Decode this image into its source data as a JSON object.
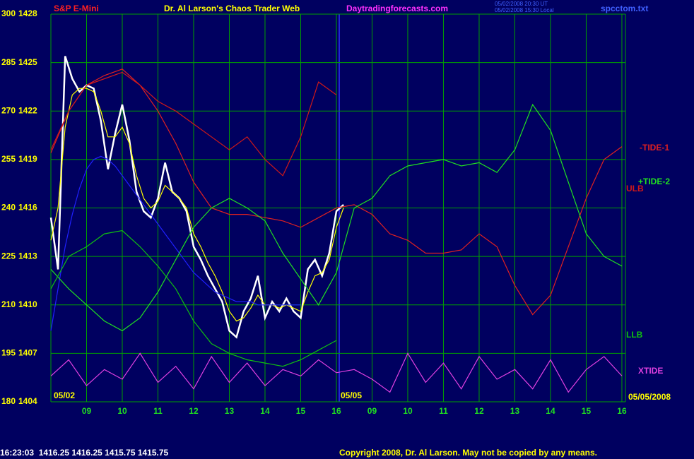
{
  "chart_data": {
    "type": "line",
    "instrument": "S&P E-Mini",
    "title": "Dr. Al Larson's Chaos Trader Web",
    "website": "Daytradingforecasts.com",
    "timestamps": [
      "05/02/2008 20:30 UT",
      "05/02/2008 15:30 Local"
    ],
    "filename": "spcctom.txt",
    "status_line": "16:23:03  1416.25 1416.25 1415.75 1415.75",
    "copyright": "Copyright 2008, Dr. Al Larson. May not be copied by any means.",
    "annotations": [
      "05/02",
      "05/05",
      "05/05/2008"
    ],
    "grid": true,
    "xlim": [
      8,
      24.1
    ],
    "xticks": [
      {
        "value": 9,
        "label": "09"
      },
      10,
      11,
      12,
      13,
      14,
      15,
      16,
      {
        "value": 17,
        "label": "09"
      },
      {
        "value": 18,
        "label": "10"
      },
      {
        "value": 19,
        "label": "11"
      },
      {
        "value": 20,
        "label": "12"
      },
      {
        "value": 21,
        "label": "13"
      },
      {
        "value": 22,
        "label": "14"
      },
      {
        "value": 23,
        "label": "15"
      },
      {
        "value": 24,
        "label": "16"
      }
    ],
    "ylim": [
      180,
      300
    ],
    "yticks": [
      180,
      195,
      210,
      225,
      240,
      255,
      270,
      285,
      300
    ],
    "y2lim": [
      1404,
      1428
    ],
    "y2ticks": [
      1404,
      1407,
      1410,
      1413,
      1416,
      1419,
      1422,
      1425,
      1428
    ],
    "series": [
      {
        "color": "#ffffff",
        "x": [
          8.0,
          8.2,
          8.4,
          8.6,
          8.8,
          9.0,
          9.2,
          9.4,
          9.6,
          9.8,
          10.0,
          10.2,
          10.4,
          10.6,
          10.8,
          11.0,
          11.2,
          11.4,
          11.6,
          11.8,
          12.0,
          12.2,
          12.4,
          12.6,
          12.8,
          13.0,
          13.2,
          13.4,
          13.6,
          13.8,
          14.0,
          14.2,
          14.4,
          14.6,
          14.8,
          15.0,
          15.2,
          15.4,
          15.6,
          15.8,
          16.0,
          16.2
        ],
        "values": [
          237,
          221,
          287,
          280,
          276,
          278,
          277,
          267,
          252,
          263,
          272,
          261,
          245,
          239,
          237,
          243,
          254,
          245,
          243,
          239,
          228,
          224,
          219,
          215,
          211,
          202,
          200,
          208,
          212,
          219,
          206,
          211,
          208,
          212,
          208,
          206,
          221,
          224,
          219,
          226,
          239,
          241
        ]
      },
      {
        "color": "#ffff00",
        "x": [
          8.0,
          8.2,
          8.4,
          8.6,
          8.8,
          9.0,
          9.2,
          9.4,
          9.6,
          9.8,
          10.0,
          10.2,
          10.4,
          10.6,
          10.8,
          11.0,
          11.2,
          11.4,
          11.6,
          11.8,
          12.0,
          12.2,
          12.4,
          12.6,
          12.8,
          13.0,
          13.2,
          13.4,
          13.6,
          13.8,
          14.0,
          14.2,
          14.4,
          14.6,
          14.8,
          15.0,
          15.2,
          15.4,
          15.6,
          15.8,
          16.0,
          16.2
        ],
        "values": [
          230,
          240,
          265,
          275,
          277,
          277,
          276,
          270,
          262,
          262,
          265,
          260,
          250,
          243,
          240,
          242,
          247,
          245,
          243,
          240,
          232,
          228,
          223,
          219,
          214,
          208,
          205,
          206,
          209,
          213,
          210,
          210,
          209,
          210,
          209,
          208,
          214,
          219,
          220,
          224,
          234,
          240
        ]
      },
      {
        "color": "#2020ff",
        "x": [
          8.0,
          8.2,
          8.4,
          8.6,
          8.8,
          9.0,
          9.2,
          9.4,
          9.6,
          9.8,
          10.0,
          10.2,
          10.4,
          10.6,
          10.8,
          11.0,
          11.2,
          11.4,
          11.6,
          11.8,
          12.0,
          12.2,
          12.4,
          12.6,
          12.8,
          13.0,
          13.2,
          13.4,
          13.6,
          13.8,
          14.0,
          14.2,
          14.4,
          14.6,
          14.8,
          15.0,
          15.2,
          15.4,
          15.6,
          15.8,
          16.0,
          16.2
        ],
        "values": [
          202,
          215,
          228,
          238,
          246,
          252,
          255,
          256,
          255,
          253,
          250,
          247,
          244,
          241,
          238,
          235,
          232,
          229,
          226,
          223,
          220,
          218,
          216,
          214,
          213,
          212,
          211,
          211,
          211,
          210,
          210,
          210,
          210,
          210,
          210,
          210,
          null,
          null,
          null,
          null,
          null,
          null
        ]
      },
      {
        "name": "-TIDE-1",
        "color": "#e02020",
        "x": [
          8.0,
          8.5,
          9.0,
          9.5,
          10.0,
          10.5,
          11.0,
          11.5,
          12.0,
          12.5,
          13.0,
          13.5,
          14.0,
          14.5,
          15.0,
          15.5,
          16.0,
          16.5,
          17.0,
          17.5,
          18.0,
          18.5,
          19.0,
          19.5,
          20.0,
          20.5,
          21.0,
          21.5,
          22.0,
          22.5,
          23.0,
          23.5,
          24.0
        ],
        "values": [
          257,
          270,
          278,
          281,
          283,
          278,
          270,
          260,
          248,
          240,
          238,
          238,
          237,
          236,
          234,
          237,
          240,
          241,
          238,
          232,
          230,
          226,
          226,
          227,
          232,
          228,
          216,
          207,
          213,
          228,
          243,
          255,
          259
        ]
      },
      {
        "name": "+TIDE-2",
        "color": "#20e020",
        "x": [
          8.0,
          8.5,
          9.0,
          9.5,
          10.0,
          10.5,
          11.0,
          11.5,
          12.0,
          12.5,
          13.0,
          13.5,
          14.0,
          14.5,
          15.0,
          15.5,
          16.0,
          16.5,
          17.0,
          17.5,
          18.0,
          18.5,
          19.0,
          19.5,
          20.0,
          20.5,
          21.0,
          21.5,
          22.0,
          22.5,
          23.0,
          23.5,
          24.0
        ],
        "values": [
          221,
          215,
          210,
          205,
          202,
          206,
          214,
          224,
          234,
          240,
          243,
          240,
          236,
          226,
          218,
          210,
          220,
          240,
          243,
          250,
          253,
          254,
          255,
          253,
          254,
          251,
          258,
          272,
          264,
          248,
          232,
          225,
          222
        ]
      },
      {
        "name": "ULB",
        "color": "#d01818",
        "x": [
          8.0,
          8.5,
          9.0,
          9.5,
          10.0,
          10.5,
          11.0,
          11.5,
          12.0,
          12.5,
          13.0,
          13.5,
          14.0,
          14.5,
          15.0,
          15.5,
          16.0
        ],
        "values": [
          258,
          270,
          278,
          280,
          282,
          278,
          273,
          270,
          266,
          262,
          258,
          262,
          255,
          250,
          262,
          279,
          275
        ]
      },
      {
        "name": "LLB",
        "color": "#10c010",
        "x": [
          8.0,
          8.5,
          9.0,
          9.5,
          10.0,
          10.5,
          11.0,
          11.5,
          12.0,
          12.5,
          13.0,
          13.5,
          14.0,
          14.5,
          15.0,
          15.5,
          16.0
        ],
        "values": [
          215,
          225,
          228,
          232,
          233,
          228,
          222,
          215,
          205,
          198,
          195,
          193,
          192,
          191,
          193,
          196,
          199
        ]
      },
      {
        "name": "XTIDE",
        "color": "#e040e0",
        "x": [
          8.0,
          8.5,
          9.0,
          9.5,
          10.0,
          10.5,
          11.0,
          11.5,
          12.0,
          12.5,
          13.0,
          13.5,
          14.0,
          14.5,
          15.0,
          15.5,
          16.0,
          16.5,
          17.0,
          17.5,
          18.0,
          18.5,
          19.0,
          19.5,
          20.0,
          20.5,
          21.0,
          21.5,
          22.0,
          22.5,
          23.0,
          23.5,
          24.0
        ],
        "values": [
          188,
          193,
          185,
          190,
          187,
          195,
          186,
          191,
          184,
          194,
          186,
          192,
          185,
          190,
          188,
          193,
          189,
          190,
          187,
          183,
          195,
          186,
          192,
          184,
          194,
          187,
          190,
          184,
          193,
          183,
          190,
          194,
          188
        ]
      }
    ]
  }
}
